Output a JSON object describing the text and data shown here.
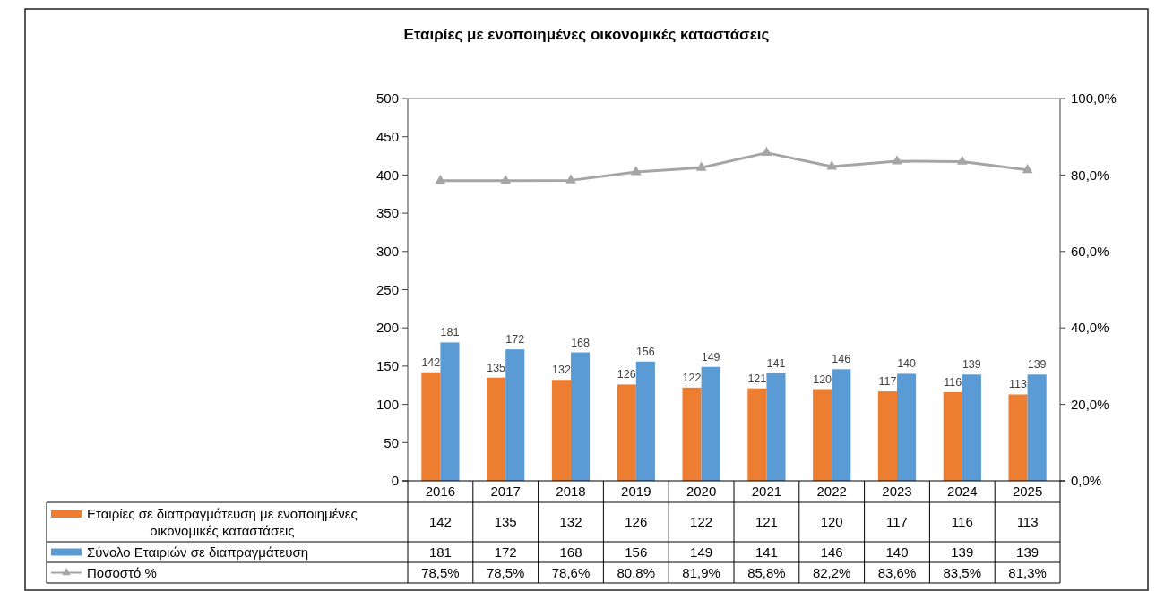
{
  "chart_data": {
    "type": "bar",
    "title": "Εταιρίες με ενοποιημένες οικονομικές καταστάσεις",
    "categories": [
      "2016",
      "2017",
      "2018",
      "2019",
      "2020",
      "2021",
      "2022",
      "2023",
      "2024",
      "2025"
    ],
    "series": [
      {
        "name": "Εταιρίες σε διαπραγμάτευση με ενοποιημένες οικονομικές καταστάσεις",
        "color": "#ed7d31",
        "values": [
          142,
          135,
          132,
          126,
          122,
          121,
          120,
          117,
          116,
          113
        ],
        "value_labels": [
          "142",
          "135",
          "132",
          "126",
          "122",
          "121",
          "120",
          "117",
          "116",
          "113"
        ]
      },
      {
        "name": "Σύνολο Εταιριών σε διαπραγμάτευση",
        "color": "#5b9bd5",
        "values": [
          181,
          172,
          168,
          156,
          149,
          141,
          146,
          140,
          139,
          139
        ],
        "value_labels": [
          "181",
          "172",
          "168",
          "156",
          "149",
          "141",
          "146",
          "140",
          "139",
          "139"
        ]
      },
      {
        "name": "Ποσοστό %",
        "type": "line",
        "axis": "y2",
        "color": "#a5a5a5",
        "values": [
          78.5,
          78.5,
          78.6,
          80.8,
          81.9,
          85.8,
          82.2,
          83.6,
          83.5,
          81.3
        ],
        "value_labels": [
          "78,5%",
          "78,5%",
          "78,6%",
          "80,8%",
          "81,9%",
          "85,8%",
          "82,2%",
          "83,6%",
          "83,5%",
          "81,3%"
        ]
      }
    ],
    "ylim": [
      0,
      500
    ],
    "yticks": [
      0,
      50,
      100,
      150,
      200,
      250,
      300,
      350,
      400,
      450,
      500
    ],
    "y2lim": [
      0,
      100
    ],
    "y2ticks": [
      {
        "value": 0,
        "label": "0,0%"
      },
      {
        "value": 20,
        "label": "20,0%"
      },
      {
        "value": 40,
        "label": "40,0%"
      },
      {
        "value": 60,
        "label": "60,0%"
      },
      {
        "value": 80,
        "label": "80,0%"
      },
      {
        "value": 100,
        "label": "100,0%"
      }
    ],
    "legend": "bottom",
    "marker": "triangle"
  }
}
